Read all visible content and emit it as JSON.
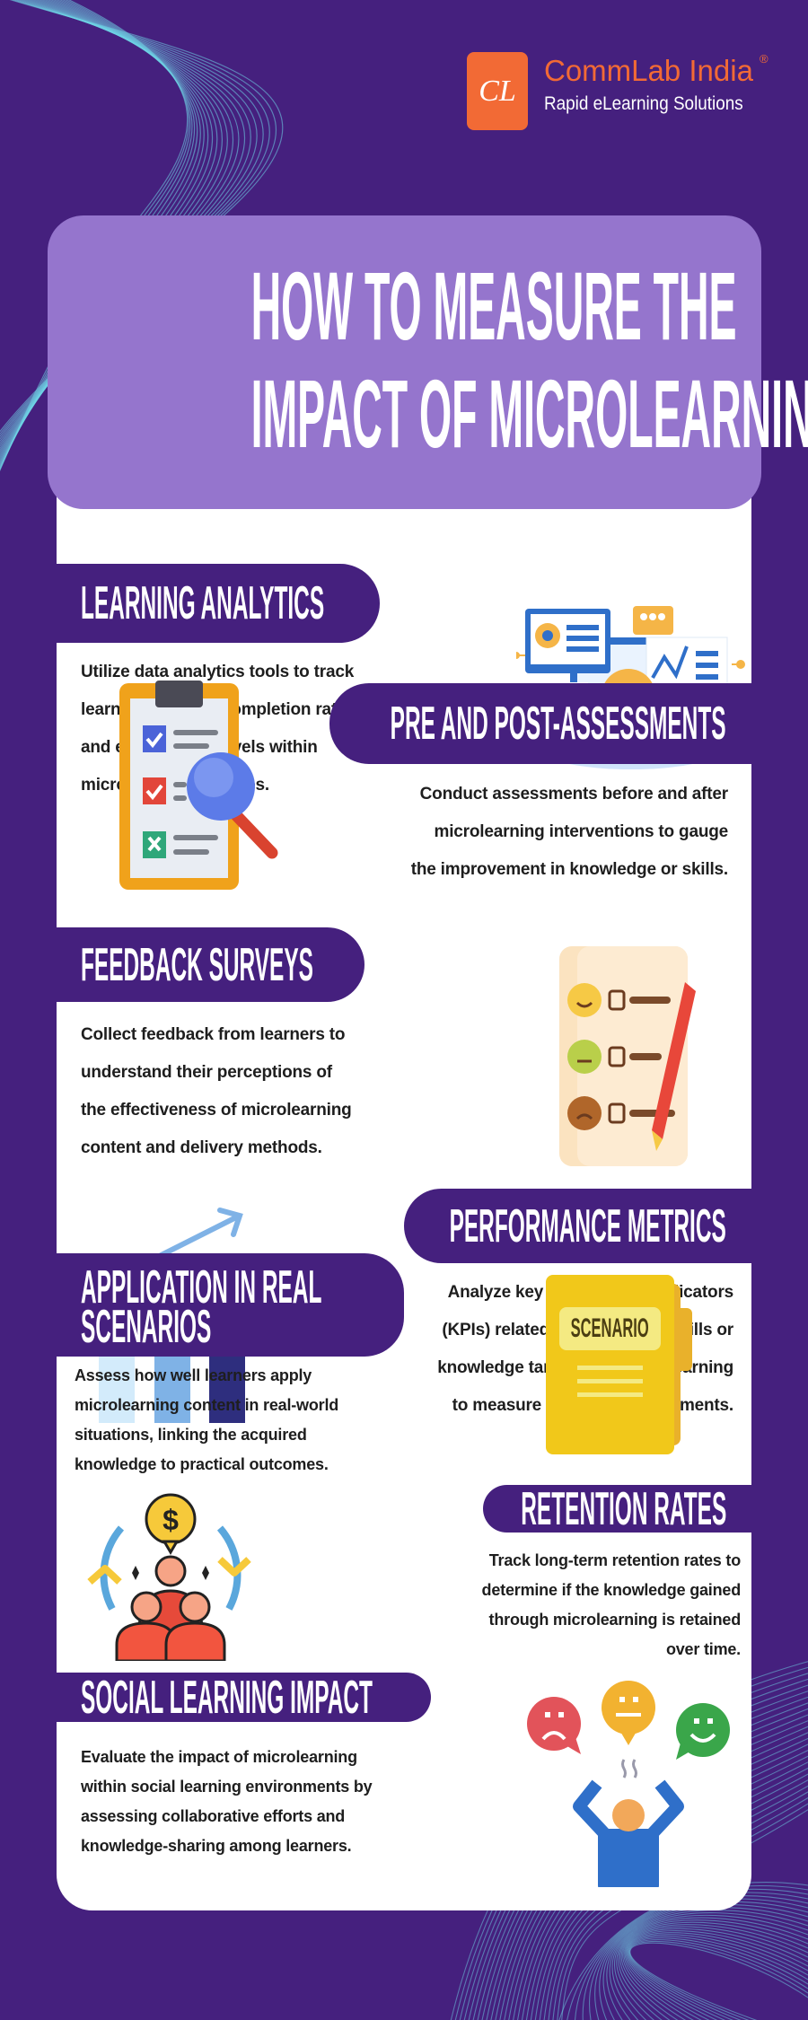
{
  "brand": {
    "logo_mark": "CL",
    "name": "CommLab India",
    "registered": "®",
    "tagline": "Rapid eLearning Solutions",
    "accent": "#f26a35"
  },
  "title": {
    "lines": [
      "HOW TO MEASURE THE",
      "IMPACT OF MICROLEARNING"
    ]
  },
  "colors": {
    "background": "#45207e",
    "title_box": "#9575cd",
    "card": "#ffffff",
    "decoration": "#6fd3e6"
  },
  "sections": [
    {
      "heading": [
        "LEARNING ANALYTICS"
      ],
      "icon": "analytics-dashboard-icon",
      "body": [
        "Utilize data analytics tools to track",
        "learner progress, completion rates,",
        "and engagement levels within",
        "microlearning modules."
      ]
    },
    {
      "heading": [
        "PRE AND POST-ASSESSMENTS"
      ],
      "icon": "clipboard-magnifier-icon",
      "body": [
        "Conduct assessments before and after",
        "microlearning interventions to gauge",
        "the improvement in knowledge or skills."
      ]
    },
    {
      "heading": [
        "FEEDBACK SURVEYS"
      ],
      "icon": "survey-emoji-icon",
      "body": [
        "Collect feedback from learners to",
        "understand their perceptions of",
        "the effectiveness of microlearning",
        "content and delivery methods."
      ]
    },
    {
      "heading": [
        "PERFORMANCE METRICS"
      ],
      "icon": "bar-chart-growth-icon",
      "body": [
        "Analyze key performance indicators",
        "(KPIs) related to the specific skills or",
        "knowledge targeted by microlearning",
        "to measure tangible improvements."
      ]
    },
    {
      "heading": [
        "APPLICATION IN REAL",
        "SCENARIOS"
      ],
      "icon": "scenario-folder-icon",
      "folder_label": "SCENARIO",
      "body": [
        "Assess how well learners apply",
        "microlearning content in real-world",
        "situations, linking the acquired",
        "knowledge to practical outcomes."
      ]
    },
    {
      "heading": [
        "RETENTION RATES"
      ],
      "icon": "team-cycle-icon",
      "coin_symbol": "$",
      "body": [
        "Track long-term retention rates to",
        "determine if the knowledge gained",
        "through microlearning is retained",
        "over time."
      ]
    },
    {
      "heading": [
        "SOCIAL LEARNING IMPACT"
      ],
      "icon": "social-feedback-icon",
      "body": [
        "Evaluate the impact of microlearning",
        "within social learning environments by",
        "assessing collaborative efforts and",
        "knowledge-sharing among learners."
      ]
    }
  ]
}
